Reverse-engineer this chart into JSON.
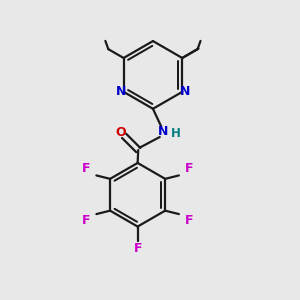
{
  "bg_color": "#e8e8e8",
  "bond_color": "#1a1a1a",
  "N_color": "#0000cc",
  "O_color": "#cc0000",
  "F_color": "#cc00cc",
  "H_color": "#008080",
  "line_width": 1.6,
  "figsize": [
    3.0,
    3.0
  ],
  "dpi": 100,
  "xlim": [
    0,
    10
  ],
  "ylim": [
    0,
    10
  ]
}
